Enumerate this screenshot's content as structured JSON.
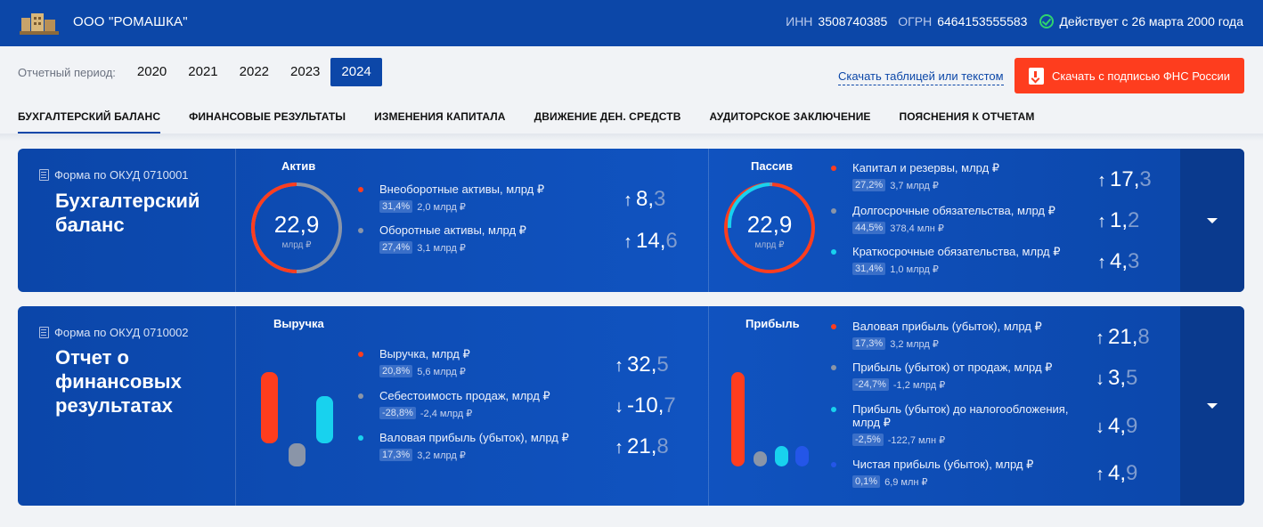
{
  "header": {
    "company": "ООО \"РОМАШКА\"",
    "inn_label": "ИНН",
    "inn": "3508740385",
    "ogrn_label": "ОГРН",
    "ogrn": "6464153555583",
    "status": "Действует с 26 марта 2000 года",
    "status_color": "#2fd36f"
  },
  "period": {
    "label": "Отчетный период:",
    "years": [
      "2020",
      "2021",
      "2022",
      "2023",
      "2024"
    ],
    "selected": "2024"
  },
  "downloads": {
    "text_link": "Скачать таблицей или текстом",
    "button": "Скачать с подписью ФНС России",
    "button_color": "#fe3d1e"
  },
  "tabs": [
    "БУХГАЛТЕРСКИЙ БАЛАНС",
    "ФИНАНСОВЫЕ РЕЗУЛЬТАТЫ",
    "ИЗМЕНЕНИЯ КАПИТАЛА",
    "ДВИЖЕНИЕ ДЕН. СРЕДСТВ",
    "АУДИТОРСКОЕ ЗАКЛЮЧЕНИЕ",
    "ПОЯСНЕНИЯ К ОТЧЕТАМ"
  ],
  "balance": {
    "form_code": "Форма по ОКУД 0710001",
    "title_l1": "Бухгалтерский",
    "title_l2": "баланс",
    "assets": {
      "title": "Актив",
      "total": "22,9",
      "unit": "млрд ₽",
      "items": [
        {
          "name": "Внеоборотные активы, млрд ₽",
          "pct": "31,4%",
          "sub": "2,0 млрд ₽",
          "arrow": "↑",
          "int": "8,",
          "frac": "3",
          "color": "#fe3d1e"
        },
        {
          "name": "Оборотные активы, млрд ₽",
          "pct": "27,4%",
          "sub": "3,1 млрд ₽",
          "arrow": "↑",
          "int": "14,",
          "frac": "6",
          "color": "#8a95a8"
        }
      ]
    },
    "liabilities": {
      "title": "Пассив",
      "total": "22,9",
      "unit": "млрд ₽",
      "items": [
        {
          "name": "Капитал и резервы, млрд ₽",
          "pct": "27,2%",
          "sub": "3,7 млрд ₽",
          "arrow": "↑",
          "int": "17,",
          "frac": "3",
          "color": "#fe3d1e"
        },
        {
          "name": "Долгосрочные обязательства, млрд ₽",
          "pct": "44,5%",
          "sub": "378,4 млн ₽",
          "arrow": "↑",
          "int": "1,",
          "frac": "2",
          "color": "#8a95a8"
        },
        {
          "name": "Краткосрочные обязательства, млрд ₽",
          "pct": "31,4%",
          "sub": "1,0 млрд ₽",
          "arrow": "↑",
          "int": "4,",
          "frac": "3",
          "color": "#18d2ee"
        }
      ]
    }
  },
  "results": {
    "form_code": "Форма по ОКУД 0710002",
    "title_l1": "Отчет о",
    "title_l2": "финансовых",
    "title_l3": "результатах",
    "revenue": {
      "title": "Выручка",
      "items": [
        {
          "name": "Выручка, млрд ₽",
          "pct": "20,8%",
          "sub": "5,6 млрд ₽",
          "arrow": "↑",
          "int": "32,",
          "frac": "5",
          "color": "#fe3d1e"
        },
        {
          "name": "Себестоимость продаж, млрд ₽",
          "pct": "-28,8%",
          "sub": "-2,4 млрд ₽",
          "arrow": "↓",
          "int": "-10,",
          "frac": "7",
          "color": "#8a95a8"
        },
        {
          "name": "Валовая прибыль (убыток), млрд ₽",
          "pct": "17,3%",
          "sub": "3,2 млрд ₽",
          "arrow": "↑",
          "int": "21,",
          "frac": "8",
          "color": "#18d2ee"
        }
      ]
    },
    "profit": {
      "title": "Прибыль",
      "items": [
        {
          "name": "Валовая прибыль (убыток), млрд ₽",
          "pct": "17,3%",
          "sub": "3,2 млрд ₽",
          "arrow": "↑",
          "int": "21,",
          "frac": "8",
          "color": "#fe3d1e"
        },
        {
          "name": "Прибыль (убыток) от продаж, млрд ₽",
          "pct": "-24,7%",
          "sub": "-1,2 млрд ₽",
          "arrow": "↓",
          "int": "3,",
          "frac": "5",
          "color": "#8a95a8"
        },
        {
          "name_l1": "Прибыль (убыток) до налогообложения,",
          "name_l2": "млрд ₽",
          "pct": "-2,5%",
          "sub": "-122,7 млн ₽",
          "arrow": "↓",
          "int": "4,",
          "frac": "9",
          "color": "#18d2ee"
        },
        {
          "name": "Чистая прибыль (убыток), млрд ₽",
          "pct": "0,1%",
          "sub": "6,9 млн ₽",
          "arrow": "↑",
          "int": "4,",
          "frac": "9",
          "color": "#2456e8"
        }
      ]
    }
  }
}
